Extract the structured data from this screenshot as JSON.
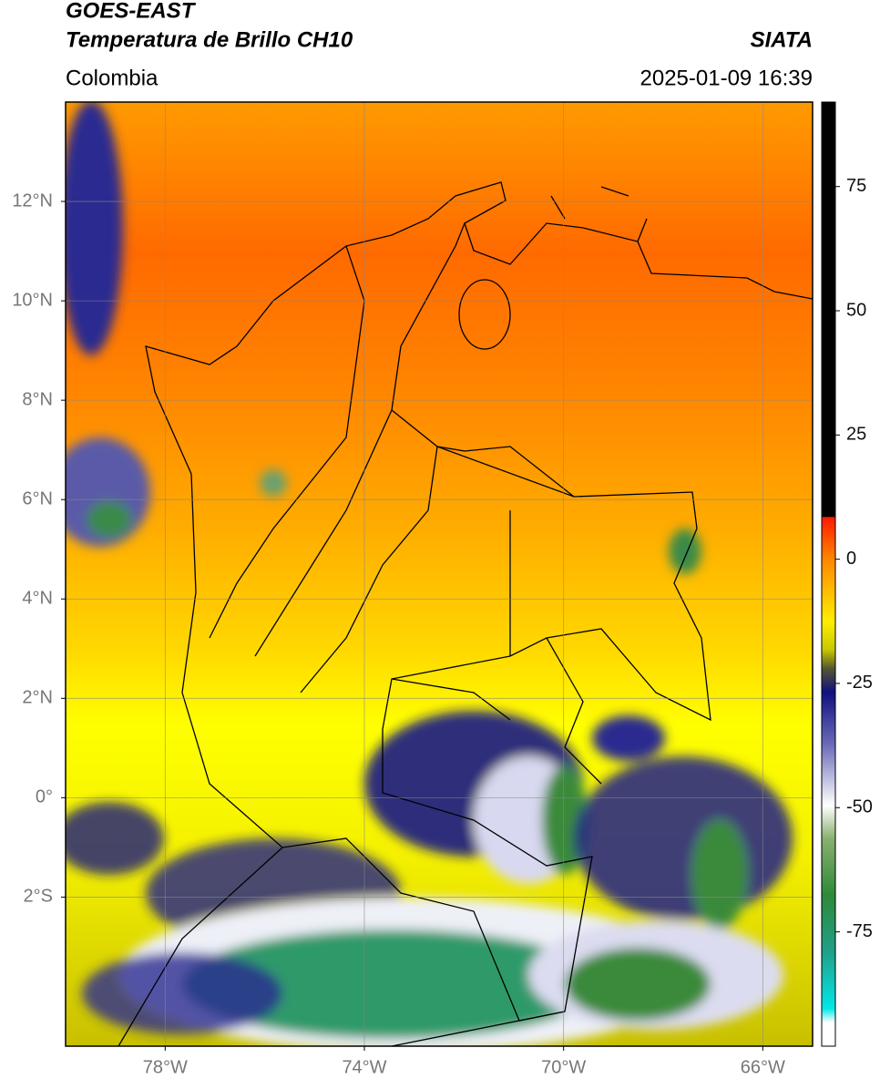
{
  "header": {
    "title": "GOES-EAST",
    "subtitle": "Temperatura de Brillo CH10",
    "source": "SIATA",
    "region": "Colombia",
    "timestamp": "2025-01-09 16:39"
  },
  "map": {
    "lonlim": [
      -80,
      -65
    ],
    "latlim": [
      -5,
      14
    ],
    "grid": true,
    "lon_ticks": [
      {
        "value": -78,
        "label": "78°W"
      },
      {
        "value": -74,
        "label": "74°W"
      },
      {
        "value": -70,
        "label": "70°W"
      },
      {
        "value": -66,
        "label": "66°W"
      }
    ],
    "lat_ticks": [
      {
        "value": 12,
        "label": "12°N"
      },
      {
        "value": 10,
        "label": "10°N"
      },
      {
        "value": 8,
        "label": "8°N"
      },
      {
        "value": 6,
        "label": "6°N"
      },
      {
        "value": 4,
        "label": "4°N"
      },
      {
        "value": 2,
        "label": "2°N"
      },
      {
        "value": 0,
        "label": "0°"
      },
      {
        "value": -2,
        "label": "2°S"
      }
    ]
  },
  "colorbar": {
    "lim": [
      -98,
      92
    ],
    "ticks": [
      75,
      50,
      25,
      0,
      -25,
      -50,
      -75
    ]
  }
}
